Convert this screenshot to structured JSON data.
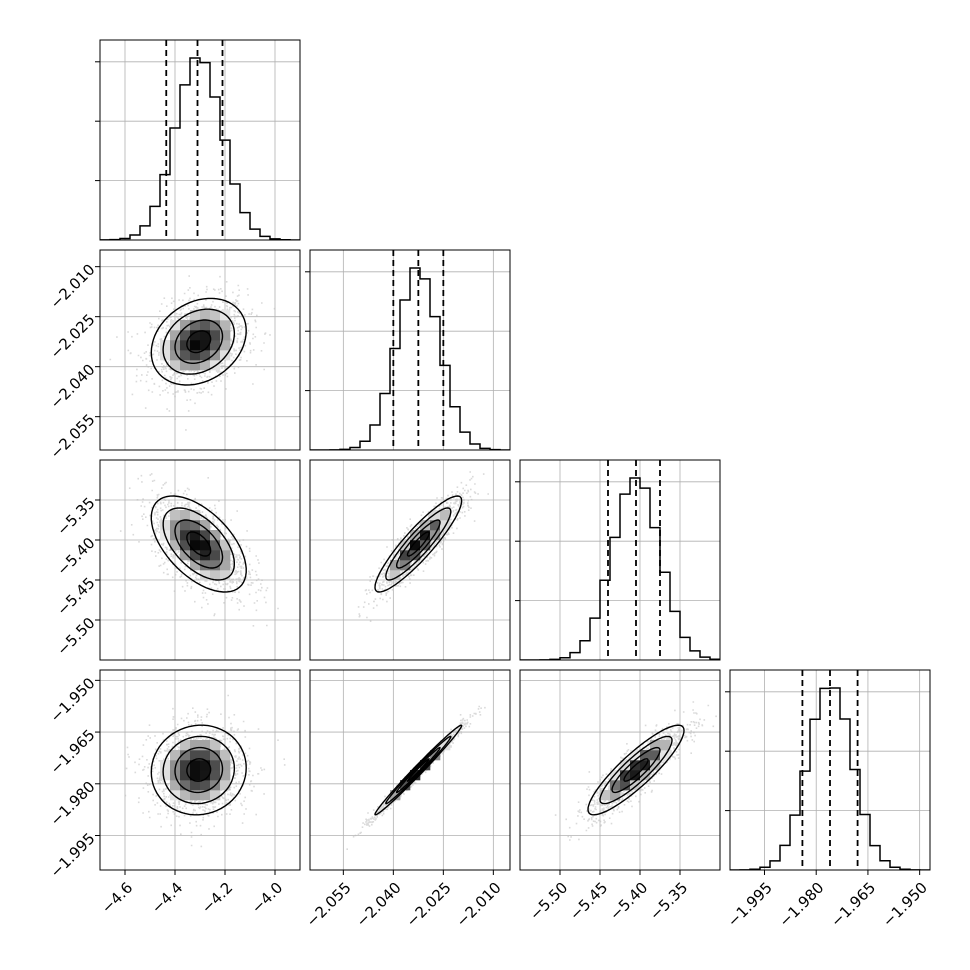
{
  "figure": {
    "background": "#ffffff",
    "line_color": "#000000",
    "grid_color": "#b0b0b0",
    "scatter_color": "#bbbbbb"
  },
  "chart_data": {
    "type": "corner",
    "parameters": [
      {
        "range": [
          -4.7,
          -3.9
        ],
        "ticks": [
          "−4.6",
          "−4.4",
          "−4.2",
          "−4.0"
        ],
        "tick_values": [
          -4.6,
          -4.4,
          -4.2,
          -4.0
        ],
        "mean": -4.305,
        "sd": 0.095,
        "quantiles": [
          -4.435,
          -4.31,
          -4.21
        ]
      },
      {
        "range": [
          -2.065,
          -2.005
        ],
        "ticks": [
          "−2.010",
          "−2.025",
          "−2.040",
          "−2.055"
        ],
        "tick_values": [
          -2.01,
          -2.025,
          -2.04,
          -2.055
        ],
        "mean": -2.0325,
        "sd": 0.0065,
        "quantiles": [
          -2.04,
          -2.0325,
          -2.025
        ]
      },
      {
        "range": [
          -5.55,
          -5.3
        ],
        "ticks": [
          "−5.35",
          "−5.40",
          "−5.45",
          "−5.50"
        ],
        "tick_values": [
          -5.35,
          -5.4,
          -5.45,
          -5.5
        ],
        "mean": -5.405,
        "sd": 0.03,
        "quantiles": [
          -5.44,
          -5.405,
          -5.375
        ]
      },
      {
        "range": [
          -2.005,
          -1.947
        ],
        "ticks": [
          "−1.950",
          "−1.965",
          "−1.980",
          "−1.995"
        ],
        "tick_values": [
          -1.95,
          -1.965,
          -1.98,
          -1.995
        ],
        "mean": -1.976,
        "sd": 0.0065,
        "quantiles": [
          -1.984,
          -1.976,
          -1.968
        ]
      }
    ],
    "x_tick_labels": [
      [
        "−4.6",
        "−4.4",
        "−4.2",
        "−4.0"
      ],
      [
        "−2.055",
        "−2.040",
        "−2.025",
        "−2.010"
      ],
      [
        "−5.50",
        "−5.45",
        "−5.40",
        "−5.35"
      ],
      [
        "−1.995",
        "−1.980",
        "−1.965",
        "−1.950"
      ]
    ],
    "x_tick_values": [
      [
        -4.6,
        -4.4,
        -4.2,
        -4.0
      ],
      [
        -2.055,
        -2.04,
        -2.025,
        -2.01
      ],
      [
        -5.5,
        -5.45,
        -5.4,
        -5.35
      ],
      [
        -1.995,
        -1.98,
        -1.965,
        -1.95
      ]
    ],
    "correlations": [
      [
        1,
        0.25,
        -0.55,
        0.05
      ],
      [
        0.25,
        1,
        0.9,
        0.99
      ],
      [
        -0.55,
        0.9,
        1,
        0.88
      ],
      [
        0.05,
        0.99,
        0.88,
        1
      ]
    ],
    "grid": true,
    "contours": true
  }
}
